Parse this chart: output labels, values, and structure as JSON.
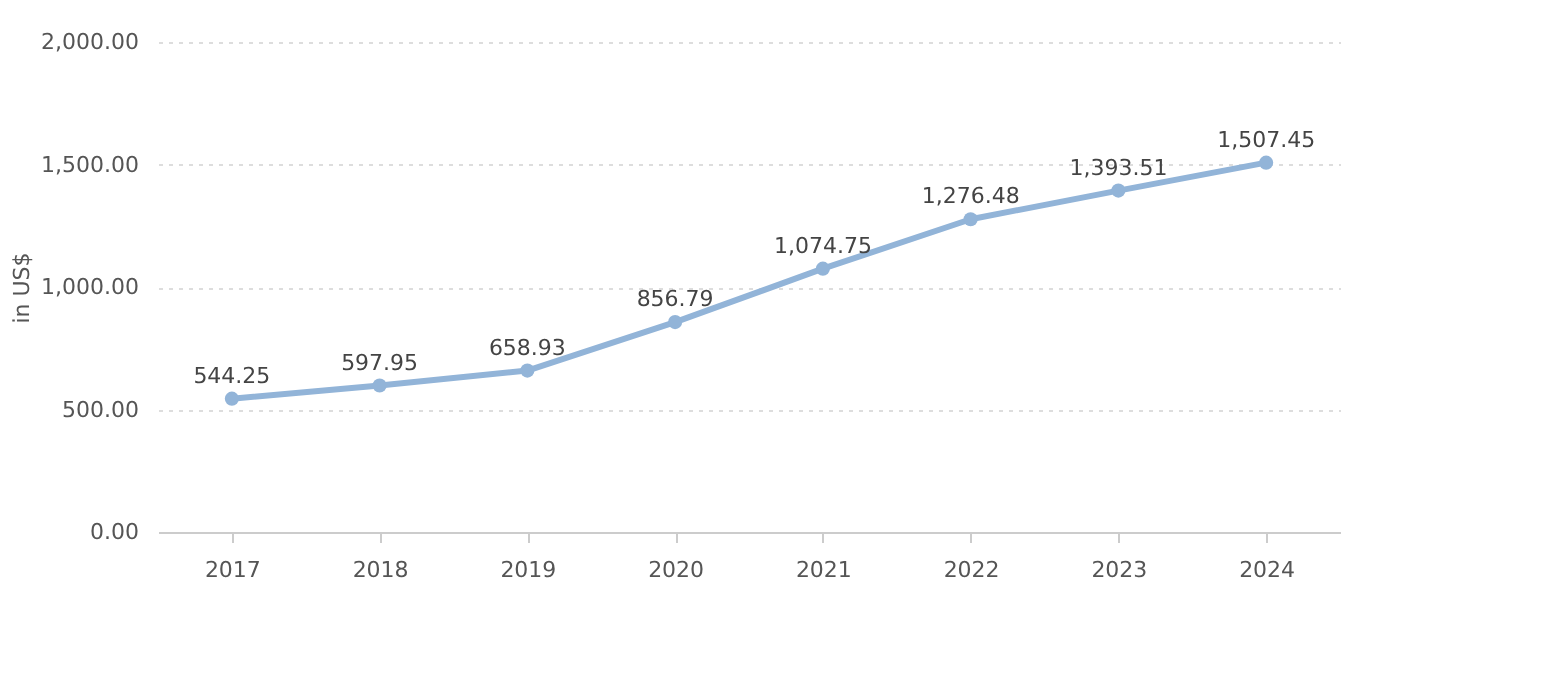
{
  "chart_data": {
    "type": "line",
    "ylabel": "in US$",
    "categories": [
      "2017",
      "2018",
      "2019",
      "2020",
      "2021",
      "2022",
      "2023",
      "2024"
    ],
    "series": [
      {
        "color": "#92b4d8",
        "values": [
          544.25,
          597.95,
          658.93,
          856.79,
          1074.75,
          1276.48,
          1393.51,
          1507.45
        ],
        "value_labels": [
          "544.25",
          "597.95",
          "658.93",
          "856.79",
          "1,074.75",
          "1,276.48",
          "1,393.51",
          "1,507.45"
        ]
      }
    ],
    "ylim": [
      0,
      2000
    ],
    "yticks": [
      {
        "value": 0,
        "label": "0.00"
      },
      {
        "value": 500,
        "label": "500.00"
      },
      {
        "value": 1000,
        "label": "1,000.00"
      },
      {
        "value": 1500,
        "label": "1,500.00"
      },
      {
        "value": 2000,
        "label": "2,000.00"
      }
    ],
    "grid": "y",
    "marker": "circle",
    "line_style": "solid"
  }
}
